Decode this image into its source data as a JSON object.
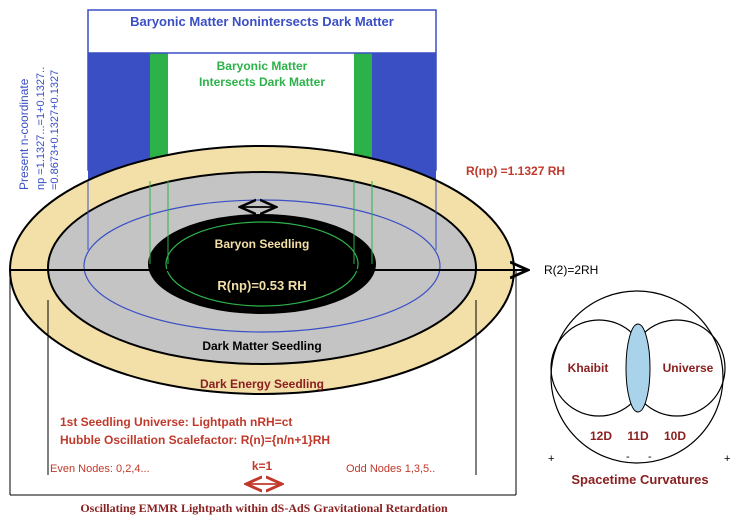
{
  "top_banner": "Baryonic Matter Nonintersects Dark Matter",
  "intersect": {
    "line1": "Baryonic Matter",
    "line2": "Intersects Dark Matter"
  },
  "vertical": {
    "line1": "Present n-coordinate",
    "line2": "np =1.1327...=1+0.1327..",
    "line3": "=0.8673+0.1327+0.1327"
  },
  "r_np_outer": "R(np) =1.1327 RH",
  "r2": "R(2)=2RH",
  "baryon_seedling": "Baryon Seedling",
  "r_np_inner": "R(np)=0.53 RH",
  "dark_matter_seedling": "Dark Matter Seedling",
  "dark_energy_seedling": "Dark Energy Seedling",
  "first_seedling": "1st Seedling Universe: Lightpath nRH=ct",
  "hubble": "Hubble Oscillation Scalefactor: R(n)={n/n+1}RH",
  "even_nodes": "Even Nodes: 0,2,4...",
  "k": "k=1",
  "odd_nodes": "Odd Nodes 1,3,5..",
  "bottom_caption": "Oscillating EMMR Lightpath within dS-AdS Gravitational Retardation",
  "venn": {
    "khaibit": "Khaibit",
    "universe": "Universe",
    "d12": "12D",
    "d11": "11D",
    "d10": "10D",
    "plus_left": "+",
    "minus_1": "-",
    "minus_2": "-",
    "plus_right": "+",
    "spacetime": "Spacetime Curvatures"
  },
  "colors": {
    "blue": "#3a4fc4",
    "green": "#2db24a",
    "tan": "#f2e0a8",
    "gray": "#c4c4c4",
    "red": "#c0392b",
    "black": "#000000",
    "light_blue": "#a9d3ea"
  }
}
